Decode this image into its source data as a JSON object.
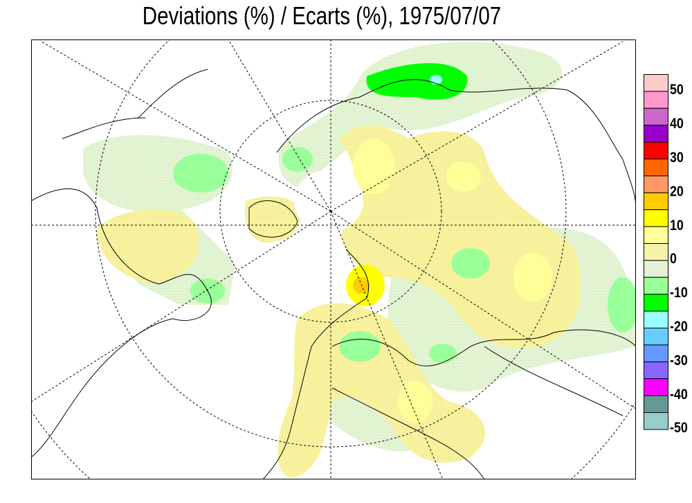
{
  "title": "Deviations (%) / Ecarts (%), 1975/07/07",
  "legend": {
    "colors": [
      "#ffcccc",
      "#ff99cc",
      "#cc66cc",
      "#9900cc",
      "#ff0000",
      "#ff6600",
      "#ff9966",
      "#ffcc00",
      "#ffff00",
      "#ffff99",
      "#f6f2a8",
      "#e2f2d2",
      "#99ff99",
      "#00ff00",
      "#99ffff",
      "#66ccff",
      "#6699ff",
      "#8866ff",
      "#ff00ff",
      "#669999",
      "#99cccc"
    ],
    "labels": [
      "50",
      "40",
      "30",
      "20",
      "10",
      "0",
      "-10",
      "-20",
      "-30",
      "-40",
      "-50"
    ]
  },
  "map": {
    "projection": "polar stereographic, northern hemisphere",
    "graticule": "dashed"
  }
}
